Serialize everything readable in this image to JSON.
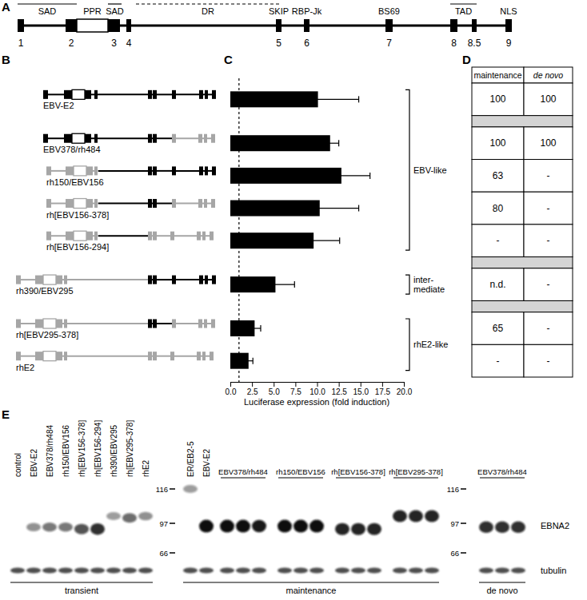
{
  "panel_letters": [
    "A",
    "B",
    "C",
    "D",
    "E"
  ],
  "domain_map": {
    "boxes": [
      "1",
      "2",
      "3",
      "4",
      "5",
      "6",
      "7",
      "8",
      "8.5",
      "9"
    ],
    "features": [
      {
        "label": "SAD",
        "line_style": "solid"
      },
      {
        "label": "PPR"
      },
      {
        "label": "SAD",
        "line_style": "solid"
      },
      {
        "label": "DR",
        "line_style": "dashed"
      },
      {
        "label": "SKIP"
      },
      {
        "label": "RBP-Jk"
      },
      {
        "label": "BS69"
      },
      {
        "label": "TAD",
        "line_style": "solid"
      },
      {
        "label": "NLS"
      }
    ]
  },
  "constructs": [
    [
      "#000000",
      "#000000",
      "#000000",
      "#000000",
      "#000000",
      "#000000",
      "#000000",
      "#000000",
      "#000000",
      "#000000",
      "#000000",
      "#000000"
    ],
    [
      "#000000",
      "#000000",
      "#000000",
      "#000000",
      "#000000",
      "#000000",
      "#000000",
      "#000000",
      "#a6a6a6",
      "#a6a6a6",
      "#a6a6a6",
      "#a6a6a6"
    ],
    [
      "#a6a6a6",
      "#a6a6a6",
      "#a6a6a6",
      "#a6a6a6",
      "#a6a6a6",
      "#000000",
      "#000000",
      "#000000",
      "#000000",
      "#000000",
      "#000000",
      "#000000"
    ],
    [
      "#a6a6a6",
      "#a6a6a6",
      "#a6a6a6",
      "#a6a6a6",
      "#a6a6a6",
      "#000000",
      "#000000",
      "#000000",
      "#a6a6a6",
      "#a6a6a6",
      "#a6a6a6",
      "#a6a6a6"
    ],
    [
      "#a6a6a6",
      "#a6a6a6",
      "#a6a6a6",
      "#a6a6a6",
      "#a6a6a6",
      "#000000",
      "#a6a6a6",
      "#a6a6a6",
      "#a6a6a6",
      "#a6a6a6",
      "#a6a6a6",
      "#a6a6a6"
    ],
    [
      "#a6a6a6",
      "#a6a6a6",
      "#a6a6a6",
      "#a6a6a6",
      "#a6a6a6",
      "#a6a6a6",
      "#000000",
      "#000000",
      "#000000",
      "#000000",
      "#000000",
      "#000000"
    ],
    [
      "#a6a6a6",
      "#a6a6a6",
      "#a6a6a6",
      "#a6a6a6",
      "#a6a6a6",
      "#a6a6a6",
      "#000000",
      "#000000",
      "#a6a6a6",
      "#a6a6a6",
      "#a6a6a6",
      "#a6a6a6"
    ],
    [
      "#a6a6a6",
      "#a6a6a6",
      "#a6a6a6",
      "#a6a6a6",
      "#a6a6a6",
      "#a6a6a6",
      "#a6a6a6",
      "#a6a6a6",
      "#a6a6a6",
      "#a6a6a6",
      "#a6a6a6",
      "#a6a6a6"
    ]
  ],
  "chart_data": {
    "type": "bar",
    "orientation": "horizontal",
    "color": "#000000",
    "categories": [
      "EBV-E2",
      "EBV378/rh484",
      "rh150/EBV156",
      "rh[EBV156-378]",
      "rh[EBV156-294]",
      "rh390/EBV295",
      "rh[EBV295-378]",
      "rhE2"
    ],
    "values": [
      10.1,
      11.5,
      12.8,
      10.3,
      9.6,
      5.2,
      2.8,
      2.1
    ],
    "errors": [
      4.7,
      1.0,
      3.3,
      4.5,
      3.0,
      2.2,
      0.7,
      0.5
    ],
    "xlabel": "Luciferase expression (fold induction)",
    "xlim": [
      0,
      20
    ],
    "xticks": [
      {
        "value": 0,
        "label": "0.0"
      },
      {
        "value": 2.5,
        "label": "2.5"
      },
      {
        "value": 5,
        "label": "5.0"
      },
      {
        "value": 7.5,
        "label": "7.5"
      },
      {
        "value": 10,
        "label": "10.0"
      },
      {
        "value": 12.5,
        "label": "12.5"
      },
      {
        "value": 15,
        "label": "15.0"
      },
      {
        "value": 17.5,
        "label": "17.5"
      },
      {
        "value": 20,
        "label": "20.0"
      }
    ],
    "tick_labels": "x",
    "reference_line": 1,
    "groups": [
      {
        "label": [
          "EBV-like"
        ],
        "members": [
          "EBV-E2",
          "EBV378/rh484",
          "rh150/EBV156",
          "rh[EBV156-378]",
          "rh[EBV156-294]"
        ]
      },
      {
        "label": [
          "inter-",
          "mediate"
        ],
        "members": [
          "rh390/EBV295"
        ]
      },
      {
        "label": [
          "rhE2-like"
        ],
        "members": [
          "rh[EBV295-378]",
          "rhE2"
        ]
      }
    ]
  },
  "table": {
    "header": [
      "maintenance",
      "de novo"
    ],
    "rows": [
      [
        100,
        100
      ],
      null,
      [
        100,
        100
      ],
      [
        63,
        "-"
      ],
      [
        80,
        "-"
      ],
      [
        "-",
        "-"
      ],
      null,
      [
        "n.d.",
        "-"
      ],
      null,
      [
        65,
        "-"
      ],
      [
        "-",
        "-"
      ]
    ]
  },
  "blot": {
    "markers": [
      116,
      97,
      66
    ],
    "row_labels": [
      "EBNA2",
      "tubulin"
    ],
    "sections": [
      {
        "label": "transient",
        "lanes": [
          {
            "label": "control",
            "bands": [
              null
            ]
          },
          {
            "label": "EBV-E2",
            "bands": [
              {
                "kda": 93,
                "intensity": 0.45
              }
            ]
          },
          {
            "label": "EBV378/rh484",
            "bands": [
              {
                "kda": 93,
                "intensity": 0.55
              }
            ]
          },
          {
            "label": "rh150/EBV156",
            "bands": [
              {
                "kda": 93,
                "intensity": 0.55
              }
            ]
          },
          {
            "label": "rh[EBV156-378]",
            "bands": [
              {
                "kda": 91,
                "intensity": 0.7
              }
            ]
          },
          {
            "label": "rh[EBV156-294]",
            "bands": [
              {
                "kda": 91,
                "intensity": 0.85
              }
            ]
          },
          {
            "label": "rh390/EBV295",
            "bands": [
              {
                "kda": 101,
                "intensity": 0.4
              }
            ]
          },
          {
            "label": "rh[EBV295-378]",
            "bands": [
              {
                "kda": 100,
                "intensity": 0.6
              }
            ]
          },
          {
            "label": "rhE2",
            "bands": [
              {
                "kda": 101,
                "intensity": 0.45
              }
            ]
          }
        ]
      },
      {
        "label": "maintenance",
        "lanes": [
          {
            "label": "ER/EB2-5",
            "bands": [
              {
                "kda": 116,
                "intensity": 0.4
              }
            ]
          },
          {
            "label": "EBV-E2",
            "bands": [
              {
                "kda": 94,
                "intensity": 1
              }
            ]
          },
          {
            "label": "EBV378/rh484",
            "bands": [
              {
                "kda": 94,
                "intensity": 1
              },
              {
                "kda": 94,
                "intensity": 1
              },
              {
                "kda": 94,
                "intensity": 0.95
              }
            ]
          },
          {
            "label": "rh150/EBV156",
            "bands": [
              {
                "kda": 94,
                "intensity": 1
              },
              {
                "kda": 94,
                "intensity": 1
              },
              {
                "kda": 94,
                "intensity": 1
              }
            ]
          },
          {
            "label": "rh[EBV156-378]",
            "bands": [
              {
                "kda": 91,
                "intensity": 0.9
              },
              {
                "kda": 91,
                "intensity": 0.9
              },
              {
                "kda": 91,
                "intensity": 0.9
              }
            ]
          },
          {
            "label": "rh[EBV295-378]",
            "bands": [
              {
                "kda": 101,
                "intensity": 0.9
              },
              {
                "kda": 101,
                "intensity": 0.9
              },
              {
                "kda": 101,
                "intensity": 0.9
              }
            ]
          }
        ]
      },
      {
        "label": "de novo",
        "lanes": [
          {
            "label": "EBV378/rh484",
            "bands": [
              {
                "kda": 93,
                "intensity": 0.85
              },
              {
                "kda": 93,
                "intensity": 0.85
              },
              {
                "kda": 93,
                "intensity": 0.85
              }
            ]
          }
        ]
      }
    ]
  }
}
